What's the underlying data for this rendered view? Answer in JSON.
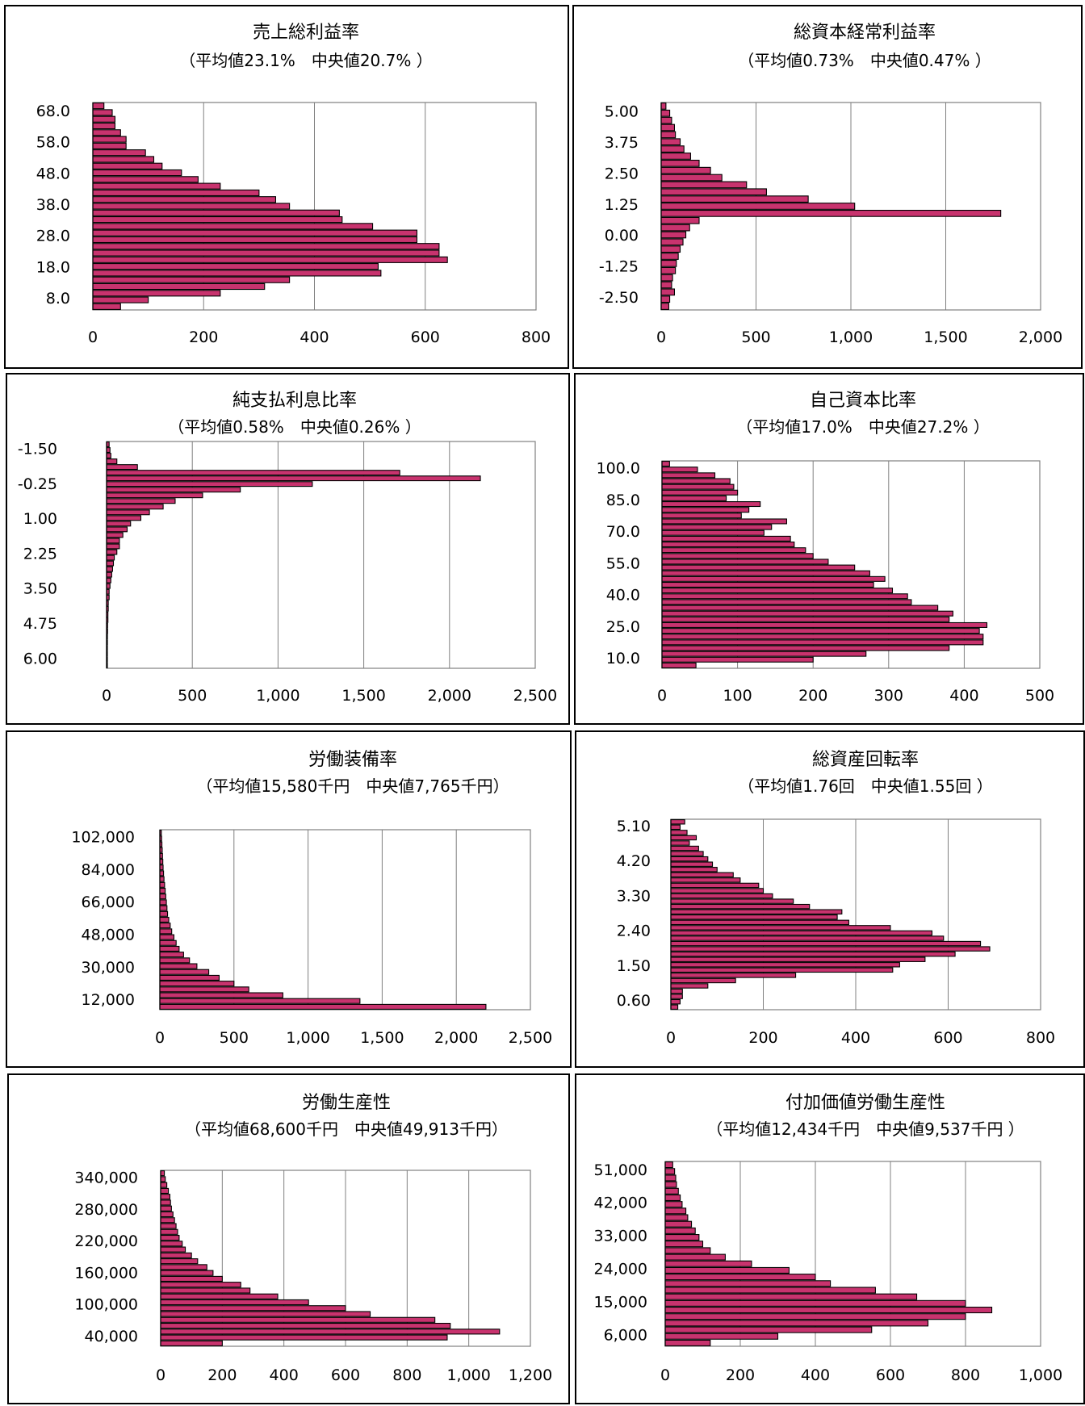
{
  "colors": {
    "bar_fill": "#c8336e",
    "bar_stroke": "#000000",
    "grid": "#808080",
    "panel_border": "#000000"
  },
  "chart_data": [
    {
      "type": "bar",
      "orientation": "horizontal",
      "title": "売上総利益率",
      "subtitle": "（平均値23.1%　中央値20.7% ）",
      "y_tick_labels": [
        "68.0",
        "58.0",
        "48.0",
        "38.0",
        "28.0",
        "18.0",
        "8.0"
      ],
      "x_tick_labels": [
        "0",
        "200",
        "400",
        "600",
        "800"
      ],
      "xlim": [
        0,
        800
      ],
      "grid": "vertical",
      "values": [
        20,
        35,
        40,
        40,
        50,
        60,
        60,
        95,
        110,
        125,
        160,
        190,
        230,
        300,
        330,
        355,
        445,
        450,
        505,
        585,
        585,
        625,
        625,
        640,
        515,
        520,
        355,
        310,
        230,
        100,
        50
      ]
    },
    {
      "type": "bar",
      "orientation": "horizontal",
      "title": "総資本経常利益率",
      "subtitle": "（平均値0.73%　中央値0.47% ）",
      "y_tick_labels": [
        "5.00",
        "3.75",
        "2.50",
        "1.25",
        "0.00",
        "-1.25",
        "-2.50"
      ],
      "x_tick_labels": [
        "0",
        "500",
        "1,000",
        "1,500",
        "2,000"
      ],
      "xlim": [
        0,
        2000
      ],
      "grid": "vertical",
      "values": [
        25,
        45,
        55,
        70,
        75,
        100,
        120,
        155,
        200,
        260,
        320,
        450,
        555,
        775,
        1020,
        1790,
        200,
        150,
        130,
        115,
        100,
        90,
        80,
        75,
        60,
        55,
        70,
        45,
        40
      ]
    },
    {
      "type": "bar",
      "orientation": "horizontal",
      "title": "純支払利息比率",
      "subtitle": "（平均値0.58%　中央値0.26% ）",
      "y_tick_labels": [
        "-1.50",
        "-0.25",
        "1.00",
        "2.25",
        "3.50",
        "4.75",
        "6.00"
      ],
      "x_tick_labels": [
        "0",
        "500",
        "1,000",
        "1,500",
        "2,000",
        "2,500"
      ],
      "xlim": [
        0,
        2500
      ],
      "grid": "vertical",
      "values": [
        15,
        20,
        25,
        60,
        180,
        1710,
        2180,
        1200,
        780,
        560,
        400,
        330,
        250,
        200,
        140,
        120,
        95,
        75,
        75,
        60,
        45,
        40,
        35,
        30,
        25,
        20,
        15,
        15,
        10,
        10,
        8,
        8,
        6,
        6,
        5,
        5,
        4,
        4,
        3,
        3
      ]
    },
    {
      "type": "bar",
      "orientation": "horizontal",
      "title": "自己資本比率",
      "subtitle": "（平均値17.0%　中央値27.2% ）",
      "y_tick_labels": [
        "100.0",
        "85.0",
        "70.0",
        "55.0",
        "40.0",
        "25.0",
        "10.0"
      ],
      "x_tick_labels": [
        "0",
        "100",
        "200",
        "300",
        "400",
        "500"
      ],
      "xlim": [
        0,
        500
      ],
      "grid": "vertical",
      "values": [
        10,
        47,
        70,
        90,
        95,
        100,
        85,
        130,
        115,
        105,
        165,
        145,
        135,
        170,
        175,
        190,
        200,
        220,
        255,
        275,
        295,
        280,
        305,
        325,
        330,
        365,
        385,
        380,
        430,
        420,
        425,
        425,
        380,
        270,
        200,
        45
      ]
    },
    {
      "type": "bar",
      "orientation": "horizontal",
      "title": "労働装備率",
      "subtitle": "（平均値15,580千円　中央値7,765千円）",
      "y_tick_labels": [
        "102,000",
        "84,000",
        "66,000",
        "48,000",
        "30,000",
        "12,000"
      ],
      "x_tick_labels": [
        "0",
        "500",
        "1,000",
        "1,500",
        "2,000",
        "2,500"
      ],
      "xlim": [
        0,
        2500
      ],
      "grid": "vertical",
      "values": [
        10,
        12,
        14,
        16,
        18,
        20,
        22,
        25,
        28,
        32,
        36,
        40,
        44,
        48,
        52,
        60,
        70,
        80,
        95,
        110,
        130,
        160,
        200,
        250,
        330,
        400,
        500,
        600,
        830,
        1350,
        2200
      ]
    },
    {
      "type": "bar",
      "orientation": "horizontal",
      "title": "総資産回転率",
      "subtitle": "（平均値1.76回　中央値1.55回 ）",
      "y_tick_labels": [
        "5.10",
        "4.20",
        "3.30",
        "2.40",
        "1.50",
        "0.60"
      ],
      "x_tick_labels": [
        "0",
        "200",
        "400",
        "600",
        "800"
      ],
      "xlim": [
        0,
        800
      ],
      "grid": "vertical",
      "values": [
        30,
        20,
        35,
        55,
        40,
        60,
        70,
        80,
        90,
        100,
        135,
        150,
        190,
        200,
        220,
        265,
        300,
        370,
        360,
        385,
        475,
        565,
        590,
        670,
        690,
        615,
        550,
        495,
        480,
        270,
        140,
        80,
        25,
        25,
        20,
        15
      ]
    },
    {
      "type": "bar",
      "orientation": "horizontal",
      "title": "労働生産性",
      "subtitle": "（平均値68,600千円　中央値49,913千円）",
      "y_tick_labels": [
        "340,000",
        "280,000",
        "220,000",
        "160,000",
        "100,000",
        "40,000"
      ],
      "x_tick_labels": [
        "0",
        "200",
        "400",
        "600",
        "800",
        "1,000",
        "1,200"
      ],
      "xlim": [
        0,
        1200
      ],
      "grid": "vertical",
      "values": [
        12,
        15,
        20,
        25,
        30,
        32,
        35,
        40,
        45,
        50,
        55,
        60,
        70,
        80,
        100,
        120,
        150,
        170,
        200,
        260,
        290,
        380,
        480,
        600,
        680,
        890,
        940,
        1100,
        930,
        200
      ]
    },
    {
      "type": "bar",
      "orientation": "horizontal",
      "title": "付加価値労働生産性",
      "subtitle": "（平均値12,434千円　中央値9,537千円 ）",
      "y_tick_labels": [
        "51,000",
        "42,000",
        "33,000",
        "24,000",
        "15,000",
        "6,000"
      ],
      "x_tick_labels": [
        "0",
        "200",
        "400",
        "600",
        "800",
        "1,000"
      ],
      "xlim": [
        0,
        1000
      ],
      "grid": "vertical",
      "values": [
        20,
        25,
        28,
        30,
        35,
        40,
        45,
        55,
        60,
        70,
        80,
        90,
        100,
        120,
        160,
        230,
        330,
        400,
        440,
        560,
        670,
        800,
        870,
        800,
        700,
        550,
        300,
        120
      ]
    }
  ]
}
